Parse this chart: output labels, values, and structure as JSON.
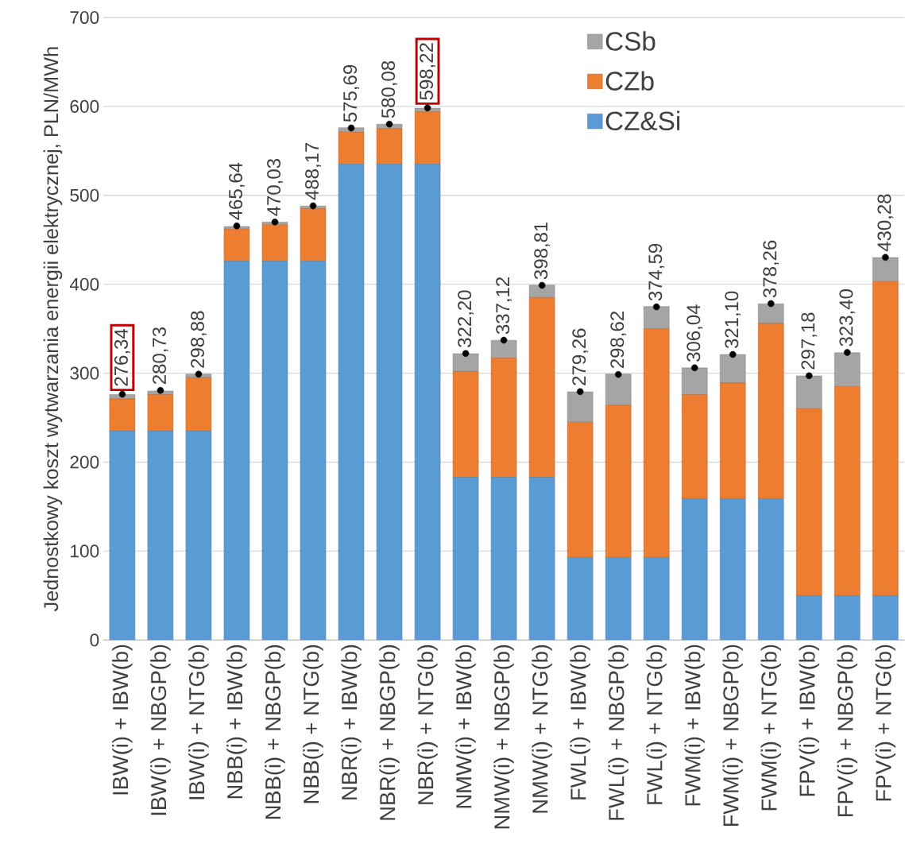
{
  "chart_data": {
    "type": "bar",
    "stacked": true,
    "ylabel": "Jednostkowy koszt wytwarzania energii elektrycznej, PLN/MWh",
    "categories": [
      "IBW(i) + IBW(b)",
      "IBW(i) + NBGP(b)",
      "IBW(i) + NTG(b)",
      "NBB(i) + IBW(b)",
      "NBB(i) + NBGP(b)",
      "NBB(i) + NTG(b)",
      "NBR(i) + IBW(b)",
      "NBR(i) + NBGP(b)",
      "NBR(i) + NTG(b)",
      "NMW(i) + IBW(b)",
      "NMW(i) + NBGP(b)",
      "NMW(i) + NTG(b)",
      "FWL(i) + IBW(b)",
      "FWL(i) + NBGP(b)",
      "FWL(i) + NTG(b)",
      "FWM(i) + IBW(b)",
      "FWM(i) + NBGP(b)",
      "FWM(i) + NTG(b)",
      "FPV(i) + IBW(b)",
      "FPV(i) + NBGP(b)",
      "FPV(i) + NTG(b)"
    ],
    "series": [
      {
        "name": "CZ&Si",
        "color": "#5b9bd5",
        "values": [
          235,
          235,
          235,
          426,
          426,
          426,
          535,
          535,
          535,
          183,
          183,
          183,
          93,
          93,
          93,
          159,
          159,
          159,
          50,
          50,
          50
        ]
      },
      {
        "name": "CZb",
        "color": "#ed7d31",
        "values": [
          36,
          41,
          60,
          36,
          41,
          59,
          36,
          40,
          59,
          119,
          134,
          202,
          152,
          171,
          257,
          117,
          130,
          197,
          210,
          235,
          353
        ]
      },
      {
        "name": "CSb",
        "color": "#a5a5a5",
        "values": [
          5,
          4,
          4,
          3,
          3,
          3,
          5,
          5,
          4,
          20,
          20,
          14,
          34,
          35,
          25,
          30,
          32,
          22,
          37,
          38,
          27
        ]
      },
      {
        "type": "scatter",
        "color": "#000000",
        "values": [
          276.34,
          280.73,
          298.88,
          465.64,
          470.03,
          488.17,
          575.69,
          580.08,
          598.22,
          322.2,
          337.12,
          398.81,
          279.26,
          298.62,
          374.59,
          306.04,
          321.1,
          378.26,
          297.18,
          323.4,
          430.28
        ],
        "value_labels": [
          "276,34",
          "280,73",
          "298,88",
          "465,64",
          "470,03",
          "488,17",
          "575,69",
          "580,08",
          "598,22",
          "322,20",
          "337,12",
          "398,81",
          "279,26",
          "298,62",
          "374,59",
          "306,04",
          "321,10",
          "378,26",
          "297,18",
          "323,40",
          "430,28"
        ]
      }
    ],
    "ylim": [
      0,
      700
    ],
    "yticks": [
      0,
      100,
      200,
      300,
      400,
      500,
      600,
      700
    ],
    "grid": "y",
    "legend": "top right"
  }
}
